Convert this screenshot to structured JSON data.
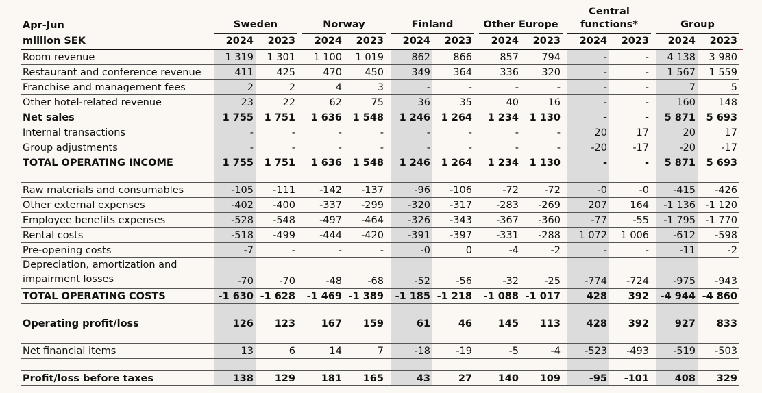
{
  "header": {
    "period_label": "Apr-Jun",
    "unit_label": "million SEK",
    "groups": [
      "Sweden",
      "Norway",
      "Finland",
      "Other Europe",
      "Central",
      "functions*",
      "Group"
    ],
    "years": [
      "2024",
      "2023"
    ]
  },
  "rows": [
    {
      "label": "Room revenue",
      "values": [
        "1 319",
        "1 301",
        "1 100",
        "1 019",
        "862",
        "866",
        "857",
        "794",
        "-",
        "-",
        "4 138",
        "3 980"
      ]
    },
    {
      "label": "Restaurant and conference revenue",
      "values": [
        "411",
        "425",
        "470",
        "450",
        "349",
        "364",
        "336",
        "320",
        "-",
        "-",
        "1 567",
        "1 559"
      ]
    },
    {
      "label": "Franchise and management fees",
      "values": [
        "2",
        "2",
        "4",
        "3",
        "-",
        "-",
        "-",
        "-",
        "-",
        "-",
        "7",
        "5"
      ]
    },
    {
      "label": "Other hotel-related revenue",
      "values": [
        "23",
        "22",
        "62",
        "75",
        "36",
        "35",
        "40",
        "16",
        "-",
        "-",
        "160",
        "148"
      ]
    },
    {
      "label": "Net sales",
      "values": [
        "1 755",
        "1 751",
        "1 636",
        "1 548",
        "1 246",
        "1 264",
        "1 234",
        "1 130",
        "-",
        "-",
        "5 871",
        "5 693"
      ]
    },
    {
      "label": "Internal transactions",
      "values": [
        "-",
        "-",
        "-",
        "-",
        "-",
        "-",
        "-",
        "-",
        "20",
        "17",
        "20",
        "17"
      ]
    },
    {
      "label": "Group adjustments",
      "values": [
        "-",
        "-",
        "-",
        "-",
        "-",
        "-",
        "-",
        "-",
        "-20",
        "-17",
        "-20",
        "-17"
      ]
    },
    {
      "label": "TOTAL OPERATING INCOME",
      "values": [
        "1 755",
        "1 751",
        "1 636",
        "1 548",
        "1 246",
        "1 264",
        "1 234",
        "1 130",
        "-",
        "-",
        "5 871",
        "5 693"
      ]
    },
    {
      "label": "Raw materials and consumables",
      "values": [
        "-105",
        "-111",
        "-142",
        "-137",
        "-96",
        "-106",
        "-72",
        "-72",
        "-0",
        "-0",
        "-415",
        "-426"
      ]
    },
    {
      "label": "Other external expenses",
      "values": [
        "-402",
        "-400",
        "-337",
        "-299",
        "-320",
        "-317",
        "-283",
        "-269",
        "207",
        "164",
        "-1 136",
        "-1 120"
      ]
    },
    {
      "label": "Employee benefits expenses",
      "values": [
        "-528",
        "-548",
        "-497",
        "-464",
        "-326",
        "-343",
        "-367",
        "-360",
        "-77",
        "-55",
        "-1 795",
        "-1 770"
      ]
    },
    {
      "label": "Rental costs",
      "values": [
        "-518",
        "-499",
        "-444",
        "-420",
        "-391",
        "-397",
        "-331",
        "-288",
        "1 072",
        "1 006",
        "-612",
        "-598"
      ]
    },
    {
      "label": "Pre-opening costs",
      "values": [
        "-7",
        "-",
        "-",
        "-",
        "-0",
        "0",
        "-4",
        "-2",
        "-",
        "-",
        "-11",
        "-2"
      ]
    },
    {
      "label_line1": "Depreciation, amortization and",
      "label_line2": "impairment losses",
      "values": [
        "-70",
        "-70",
        "-48",
        "-68",
        "-52",
        "-56",
        "-32",
        "-25",
        "-774",
        "-724",
        "-975",
        "-943"
      ]
    },
    {
      "label": "TOTAL OPERATING COSTS",
      "values": [
        "-1 630",
        "-1 628",
        "-1 469",
        "-1 389",
        "-1 185",
        "-1 218",
        "-1 088",
        "-1 017",
        "428",
        "392",
        "-4 944",
        "-4 860"
      ]
    },
    {
      "label": "Operating profit/loss",
      "values": [
        "126",
        "123",
        "167",
        "159",
        "61",
        "46",
        "145",
        "113",
        "428",
        "392",
        "927",
        "833"
      ]
    },
    {
      "label": "Net financial items",
      "values": [
        "13",
        "6",
        "14",
        "7",
        "-18",
        "-19",
        "-5",
        "-4",
        "-523",
        "-493",
        "-519",
        "-503"
      ]
    },
    {
      "label": "Profit/loss before taxes",
      "values": [
        "138",
        "129",
        "181",
        "165",
        "43",
        "27",
        "140",
        "109",
        "-95",
        "-101",
        "408",
        "329"
      ]
    }
  ],
  "colors": {
    "shade": "#dcdcdc",
    "background": "#fbf8f3",
    "accent_line": "#7a1f2b"
  }
}
